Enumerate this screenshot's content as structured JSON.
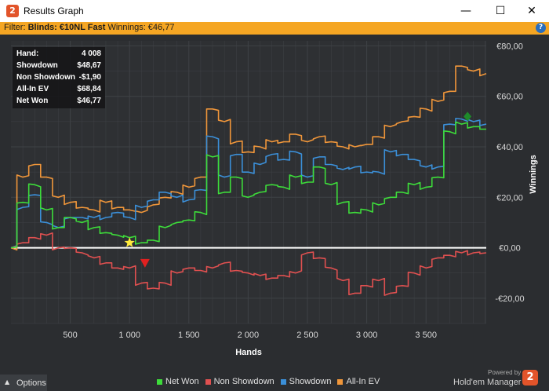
{
  "window": {
    "title": "Results Graph",
    "minimize_glyph": "—",
    "maximize_glyph": "☐",
    "close_glyph": "✕",
    "app_icon_text": "2"
  },
  "filter": {
    "prefix": "Filter:",
    "blinds_label": "Blinds: €10NL Fast",
    "winnings_label": "Winnings: €46,77",
    "help_glyph": "?"
  },
  "stats": {
    "rows": [
      {
        "label": "Hand:",
        "value": "4 008"
      },
      {
        "label": "Showdown",
        "value": "$48,67"
      },
      {
        "label": "Non Showdown",
        "value": "-$1,90"
      },
      {
        "label": "All-In EV",
        "value": "$68,84"
      },
      {
        "label": "Net Won",
        "value": "$46,77"
      }
    ]
  },
  "footer": {
    "options_label": "Options",
    "options_glyph": "▲",
    "powered_by": "Powered by",
    "brand": "Hold'em Manager",
    "brand_logo_text": "2"
  },
  "colors": {
    "net_won": "#3ddc3a",
    "non_showdown": "#e05050",
    "showdown": "#3b8fd8",
    "all_in_ev": "#f0963a",
    "zero_line": "#ffffff",
    "grid": "#3f4246"
  },
  "chart_data": {
    "type": "line",
    "xlabel": "Hands",
    "ylabel": "Winnings",
    "xlim": [
      0,
      4008
    ],
    "ylim": [
      -30,
      82
    ],
    "x_ticks": [
      500,
      1000,
      1500,
      2000,
      2500,
      3000,
      3500
    ],
    "x_tick_labels": [
      "500",
      "1 000",
      "1 500",
      "2 000",
      "2 500",
      "3 000",
      "3 500"
    ],
    "y_ticks": [
      -20,
      0,
      20,
      40,
      60,
      80
    ],
    "y_tick_labels": [
      "-€20,00",
      "€0,00",
      "€20,00",
      "€40,00",
      "€60,00",
      "€80,00"
    ],
    "legend_position": "bottom",
    "grid": true,
    "x": [
      0,
      100,
      200,
      300,
      400,
      500,
      600,
      700,
      800,
      900,
      1000,
      1100,
      1200,
      1300,
      1400,
      1500,
      1600,
      1700,
      1800,
      1900,
      2000,
      2100,
      2200,
      2300,
      2400,
      2500,
      2600,
      2700,
      2800,
      2900,
      3000,
      3100,
      3200,
      3300,
      3400,
      3500,
      3600,
      3700,
      3800,
      3900,
      4008
    ],
    "series": [
      {
        "name": "Net Won",
        "color": "#3ddc3a",
        "values": [
          0,
          18,
          25,
          15,
          8,
          12,
          10,
          8,
          6,
          5,
          4,
          2,
          3,
          8,
          10,
          11,
          14,
          36,
          22,
          28,
          20,
          22,
          25,
          24,
          28,
          26,
          32,
          25,
          18,
          14,
          15,
          17,
          20,
          22,
          25,
          24,
          28,
          46,
          49,
          48,
          47
        ]
      },
      {
        "name": "Non Showdown",
        "color": "#e05050",
        "values": [
          0,
          2,
          4,
          5,
          0,
          0,
          -2,
          -4,
          -6,
          -8,
          -8,
          -14,
          -16,
          -14,
          -10,
          -8,
          -9,
          -8,
          -6,
          -9,
          -10,
          -11,
          -12,
          -11,
          -10,
          -2,
          -4,
          -8,
          -13,
          -18,
          -15,
          -13,
          -18,
          -15,
          -10,
          -8,
          -4,
          -3,
          -2,
          -2,
          -2
        ]
      },
      {
        "name": "Showdown",
        "color": "#3b8fd8",
        "values": [
          0,
          16,
          21,
          10,
          8,
          12,
          12,
          12,
          12,
          14,
          12,
          16,
          19,
          22,
          20,
          19,
          23,
          44,
          28,
          37,
          30,
          33,
          37,
          35,
          38,
          28,
          36,
          33,
          31,
          32,
          30,
          30,
          38,
          37,
          35,
          32,
          32,
          49,
          51,
          50,
          49
        ]
      },
      {
        "name": "All-In EV",
        "color": "#f0963a",
        "values": [
          0,
          28,
          33,
          28,
          20,
          18,
          16,
          15,
          18,
          16,
          15,
          14,
          17,
          20,
          22,
          24,
          28,
          55,
          50,
          42,
          38,
          40,
          42,
          42,
          45,
          42,
          44,
          42,
          40,
          40,
          41,
          44,
          48,
          50,
          52,
          55,
          58,
          62,
          72,
          70,
          69
        ]
      }
    ],
    "markers": [
      {
        "name": "star",
        "x": 1000,
        "y": 2
      },
      {
        "name": "down-triangle",
        "x": 1130,
        "y": -6
      },
      {
        "name": "diamond",
        "x": 3850,
        "y": 52
      }
    ]
  }
}
